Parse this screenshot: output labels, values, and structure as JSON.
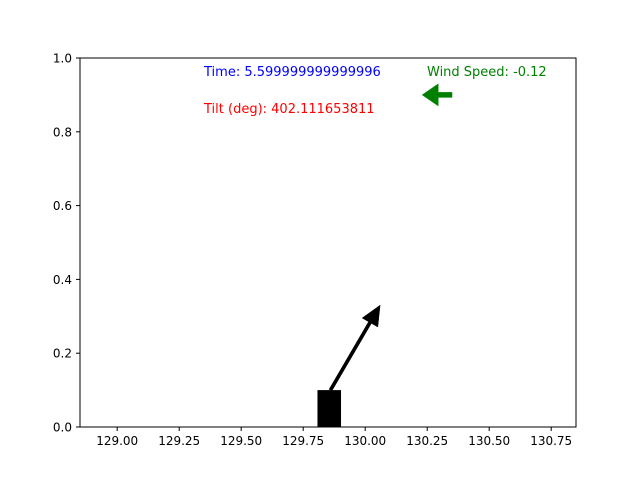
{
  "chart_data": {
    "type": "scatter",
    "title": "",
    "xlabel": "",
    "ylabel": "",
    "xlim": [
      128.85,
      130.85
    ],
    "ylim": [
      0.0,
      1.0
    ],
    "xticks": [
      129.0,
      129.25,
      129.5,
      129.75,
      130.0,
      130.25,
      130.5,
      130.75
    ],
    "xtick_labels": [
      "129.00",
      "129.25",
      "129.50",
      "129.75",
      "130.00",
      "130.25",
      "130.50",
      "130.75"
    ],
    "yticks": [
      0.0,
      0.2,
      0.4,
      0.6,
      0.8,
      1.0
    ],
    "ytick_labels": [
      "0.0",
      "0.2",
      "0.4",
      "0.6",
      "0.8",
      "1.0"
    ],
    "grid": false,
    "cart": {
      "x_center": 129.855,
      "width": 0.095,
      "height": 0.1,
      "color": "#000000"
    },
    "pole_arrow": {
      "x_start": 129.86,
      "y_start": 0.1,
      "x_end": 130.06,
      "y_end": 0.33,
      "color": "#000000"
    },
    "wind_arrow": {
      "x_start": 130.35,
      "y_start": 0.9,
      "x_end": 130.23,
      "y_end": 0.9,
      "color": "#008000"
    },
    "annotations": [
      {
        "name": "time",
        "text": "Time: 5.599999999999996",
        "color": "#0000ff"
      },
      {
        "name": "tilt",
        "text": "Tilt (deg): 402.111653811",
        "color": "#ff0000"
      },
      {
        "name": "wind-speed",
        "text": "Wind Speed: -0.12",
        "color": "#008000"
      }
    ]
  }
}
